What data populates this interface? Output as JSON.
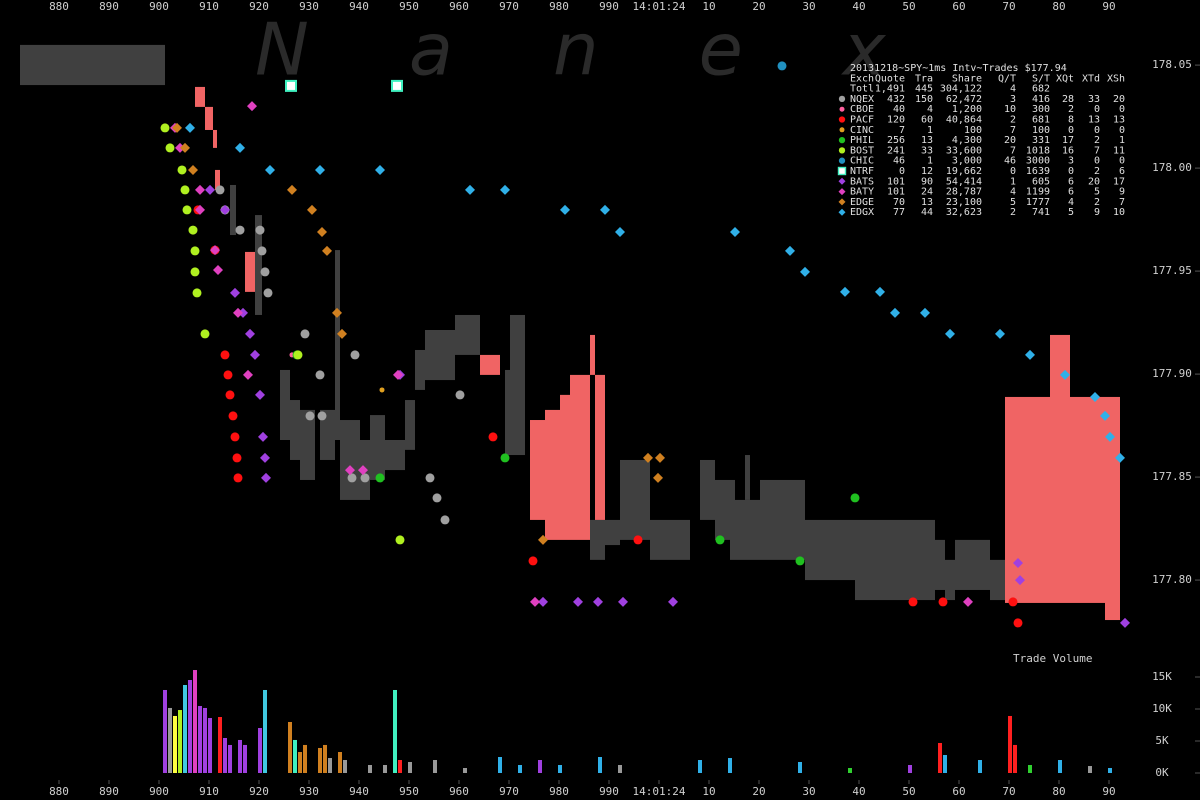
{
  "watermark": "Nanex",
  "chart_data": [
    {
      "type": "scatter",
      "title": "20131218~SPY~1ms Intv~Trades $177.94",
      "xlim": [
        868.2,
        1108.2
      ],
      "xticks": [
        880,
        890,
        900,
        910,
        920,
        930,
        940,
        950,
        960,
        970,
        980,
        990,
        {
          "value": 1000,
          "label": "14:01:24"
        },
        {
          "value": 1010,
          "label": "10"
        },
        {
          "value": 1020,
          "label": "20"
        },
        {
          "value": 1030,
          "label": "30"
        },
        {
          "value": 1040,
          "label": "40"
        },
        {
          "value": 1050,
          "label": "50"
        },
        {
          "value": 1060,
          "label": "60"
        },
        {
          "value": 1070,
          "label": "70"
        },
        {
          "value": 1080,
          "label": "80"
        },
        {
          "value": 1090,
          "label": "90"
        }
      ],
      "ylim": [
        177.7612,
        178.0816
      ],
      "yticks": [
        {
          "value": 177.8,
          "label": "177.80"
        },
        177.85,
        {
          "value": 177.9,
          "label": "177.90"
        },
        177.95,
        {
          "value": 178.0,
          "label": "178.00"
        },
        178.05
      ],
      "grid": false,
      "legend_columns": [
        "Exch",
        "Quote",
        "Tra",
        "Share",
        "Q/T",
        "S/T",
        "XQt",
        "XTd",
        "XSh"
      ],
      "totals": {
        "label": "Totl",
        "cells": [
          "1,491",
          "445",
          "304,122",
          "4",
          "682"
        ]
      },
      "quote_ranges": {
        "color": "#404040",
        "x0": [
          872.2,
          914.2,
          919.2,
          924.2,
          926.2,
          928.2,
          932.2,
          935.2,
          936.2,
          940.2,
          942.2,
          945.2,
          949.2,
          951.2,
          953.2,
          959.2,
          969.2,
          970.2,
          986.2,
          989.2,
          992.2,
          998.2,
          1008.2,
          1011.2,
          1014.2,
          1017.2,
          1020.2,
          1029.2,
          1039.2,
          1055.2,
          1057.2,
          1059.2,
          1066.2
        ],
        "x1": [
          901.2,
          915.4,
          920.6,
          926.2,
          928.2,
          931.2,
          935.2,
          936.2,
          940.2,
          942.2,
          945.2,
          949.2,
          951.2,
          953.2,
          959.2,
          964.2,
          970.2,
          973.2,
          989.2,
          992.2,
          998.2,
          1006.2,
          1011.2,
          1015.2,
          1020.2,
          1018.2,
          1029.2,
          1039.2,
          1055.2,
          1057.2,
          1059.2,
          1066.2,
          1069.2
        ],
        "low": [
          178.0403,
          177.9675,
          177.9287,
          177.868,
          177.8583,
          177.8486,
          177.8583,
          177.868,
          177.8389,
          177.8389,
          177.8486,
          177.8534,
          177.8632,
          177.8923,
          177.8971,
          177.9093,
          177.8607,
          177.8607,
          177.8098,
          177.817,
          177.8195,
          177.8098,
          177.8292,
          177.8195,
          177.8098,
          177.8389,
          177.8098,
          177.8,
          177.7903,
          177.7952,
          177.7903,
          177.7952,
          177.7903
        ],
        "high": [
          178.0598,
          177.9918,
          177.9772,
          177.902,
          177.8874,
          177.8826,
          177.8826,
          177.9602,
          177.8777,
          177.868,
          177.8801,
          177.868,
          177.8874,
          177.9117,
          177.9214,
          177.9287,
          177.902,
          177.9287,
          177.8292,
          177.8292,
          177.8583,
          177.8292,
          177.8583,
          177.8486,
          177.8389,
          177.8607,
          177.8486,
          177.8292,
          177.8292,
          177.8195,
          177.8098,
          177.8195,
          177.8098
        ]
      },
      "crossed_ranges": {
        "color": "#f06464",
        "x0": [
          907.2,
          909.2,
          910.8,
          911.2,
          917.2,
          964.2,
          974.2,
          977.2,
          980.2,
          982.2,
          986.2,
          987.2,
          1069.2,
          1078.2,
          1082.2,
          1089.2
        ],
        "x1": [
          909.2,
          910.8,
          911.6,
          912.2,
          919.2,
          968.2,
          977.2,
          980.2,
          982.2,
          986.2,
          987.2,
          989.2,
          1078.2,
          1082.2,
          1089.2,
          1092.2
        ],
        "low": [
          178.0297,
          178.0185,
          178.0098,
          177.9894,
          177.9399,
          177.8996,
          177.8292,
          177.8195,
          177.8195,
          177.8195,
          177.8996,
          177.8292,
          177.7889,
          177.7889,
          177.7889,
          177.7806
        ],
        "high": [
          178.0394,
          178.0297,
          178.0185,
          177.9991,
          177.9593,
          177.9093,
          177.8777,
          177.8826,
          177.8899,
          177.8996,
          177.919,
          177.8996,
          177.8889,
          177.919,
          177.8889,
          177.8889
        ]
      },
      "series": [
        {
          "name": "NQEX",
          "color": "#a0a0a0",
          "marker": "circle",
          "stats": [
            "432",
            "150",
            "62,472",
            "3",
            "416",
            "28",
            "33",
            "20"
          ],
          "x": [
            912.2,
            913.2,
            916.2,
            920.6,
            921.2,
            921.8,
            929.2,
            930.2,
            932.6,
            938.6,
            941.2,
            954.2,
            955.6,
            957.2,
            960.2,
            920.2,
            932.2,
            939.2
          ],
          "values": [
            177.9894,
            177.9797,
            177.9699,
            177.9598,
            177.9496,
            177.9394,
            177.9195,
            177.8797,
            177.8797,
            177.8496,
            177.8496,
            177.8496,
            177.8399,
            177.8292,
            177.8899,
            177.9699,
            177.8996,
            177.9093
          ]
        },
        {
          "name": "CBOE",
          "color": "#ff60a0",
          "marker": "dot",
          "stats": [
            "40",
            "4",
            "1,200",
            "10",
            "300",
            "2",
            "0",
            "0"
          ],
          "x": [
            926.6
          ],
          "values": [
            177.9093
          ]
        },
        {
          "name": "PACF",
          "color": "#ff1010",
          "marker": "circle",
          "stats": [
            "120",
            "60",
            "40,864",
            "2",
            "681",
            "8",
            "13",
            "13"
          ],
          "x": [
            913.2,
            913.8,
            914.2,
            914.8,
            915.2,
            915.6,
            915.8,
            966.8,
            974.8,
            995.8,
            1050.8,
            1056.8,
            1070.8,
            1071.8,
            907.8,
            911.2
          ],
          "values": [
            177.9093,
            177.8996,
            177.8899,
            177.8797,
            177.8695,
            177.8593,
            177.8496,
            177.8695,
            177.8093,
            177.8195,
            177.7894,
            177.7894,
            177.7894,
            177.7792,
            177.9797,
            177.9602
          ]
        },
        {
          "name": "CINC",
          "color": "#e0a020",
          "marker": "dot",
          "stats": [
            "7",
            "1",
            "100",
            "7",
            "100",
            "0",
            "0",
            "0"
          ],
          "x": [
            944.6
          ],
          "values": [
            177.8923
          ]
        },
        {
          "name": "PHIL",
          "color": "#20c020",
          "marker": "circle",
          "stats": [
            "256",
            "13",
            "4,300",
            "20",
            "331",
            "17",
            "2",
            "1"
          ],
          "x": [
            927.6,
            944.2,
            1012.2,
            1028.2,
            1039.2,
            969.2
          ],
          "values": [
            177.9093,
            177.8496,
            177.8195,
            177.8093,
            177.8399,
            177.8593
          ]
        },
        {
          "name": "BOST",
          "color": "#b0f020",
          "marker": "circle",
          "stats": [
            "241",
            "33",
            "33,600",
            "7",
            "1018",
            "16",
            "7",
            "11"
          ],
          "x": [
            901.2,
            902.2,
            904.6,
            905.2,
            905.6,
            906.8,
            907.2,
            907.2,
            907.6,
            909.2,
            948.2,
            927.8
          ],
          "values": [
            178.0195,
            178.0098,
            177.9991,
            177.9894,
            177.9797,
            177.9699,
            177.9598,
            177.9496,
            177.9394,
            177.9195,
            177.8195,
            177.9093
          ]
        },
        {
          "name": "CHIC",
          "color": "#2090c0",
          "marker": "circle",
          "stats": [
            "46",
            "1",
            "3,000",
            "46",
            "3000",
            "3",
            "0",
            "0"
          ],
          "x": [
            1024.6
          ],
          "values": [
            178.0496
          ]
        },
        {
          "name": "NTRF",
          "color": "#40f0c0",
          "marker": "square",
          "stats": [
            "0",
            "12",
            "19,662",
            "0",
            "1639",
            "0",
            "2",
            "6"
          ],
          "x": [
            926.4,
            947.6
          ],
          "values": [
            178.0399,
            178.0399
          ]
        },
        {
          "name": "BATS",
          "color": "#a040e0",
          "marker": "diamond",
          "stats": [
            "101",
            "90",
            "54,414",
            "1",
            "605",
            "6",
            "20",
            "17"
          ],
          "x": [
            910.2,
            913.2,
            915.2,
            916.8,
            918.2,
            919.2,
            920.2,
            920.8,
            921.2,
            921.4,
            948.2,
            976.8,
            983.8,
            987.8,
            992.8,
            1002.8,
            1071.8,
            1072.2,
            1093.2
          ],
          "values": [
            177.9894,
            177.9797,
            177.9394,
            177.9297,
            177.9195,
            177.9093,
            177.8899,
            177.8695,
            177.8593,
            177.8496,
            177.8996,
            177.7894,
            177.7894,
            177.7894,
            177.7894,
            177.7894,
            177.8083,
            177.8,
            177.7792
          ]
        },
        {
          "name": "BATY",
          "color": "#e040c0",
          "marker": "diamond",
          "stats": [
            "101",
            "24",
            "28,787",
            "4",
            "1199",
            "6",
            "5",
            "9"
          ],
          "x": [
            918.6,
            903.2,
            904.2,
            908.2,
            908.2,
            911.2,
            911.8,
            915.8,
            917.8,
            938.2,
            940.8,
            947.8,
            975.2,
            1061.8
          ],
          "values": [
            178.0301,
            178.0195,
            178.0098,
            177.9894,
            177.9797,
            177.9602,
            177.9505,
            177.9297,
            177.8996,
            177.8534,
            177.8534,
            177.8996,
            177.7894,
            177.7894
          ]
        },
        {
          "name": "EDGE",
          "color": "#d08020",
          "marker": "diamond",
          "stats": [
            "70",
            "13",
            "23,100",
            "5",
            "1777",
            "4",
            "2",
            "7"
          ],
          "x": [
            903.6,
            905.2,
            906.8,
            926.6,
            930.6,
            932.6,
            933.6,
            935.6,
            936.6,
            976.8,
            997.8,
            1000.2,
            999.8
          ],
          "values": [
            178.0195,
            178.0098,
            177.9991,
            177.9894,
            177.9797,
            177.969,
            177.9598,
            177.9297,
            177.9195,
            177.8195,
            177.8593,
            177.8593,
            177.8496
          ]
        },
        {
          "name": "EDGX",
          "color": "#30b0e8",
          "marker": "diamond",
          "stats": [
            "77",
            "44",
            "32,623",
            "2",
            "741",
            "5",
            "9",
            "10"
          ],
          "x": [
            906.2,
            916.2,
            922.2,
            932.2,
            944.2,
            962.2,
            969.2,
            981.2,
            989.2,
            992.2,
            1015.2,
            1026.2,
            1029.2,
            1037.2,
            1044.2,
            1047.2,
            1053.2,
            1058.2,
            1068.2,
            1074.2,
            1081.2,
            1087.2,
            1089.2,
            1090.2,
            1092.2
          ],
          "values": [
            178.0195,
            178.0098,
            177.9991,
            177.9991,
            177.9991,
            177.9894,
            177.9894,
            177.9797,
            177.9797,
            177.969,
            177.969,
            177.9598,
            177.9496,
            177.9399,
            177.9399,
            177.9297,
            177.9297,
            177.9195,
            177.9195,
            177.9093,
            177.8996,
            177.8889,
            177.8797,
            177.8695,
            177.8593
          ]
        }
      ]
    },
    {
      "type": "bar",
      "title": "Trade Volume",
      "ylim": [
        0,
        16875
      ],
      "yticks": [
        {
          "value": 0,
          "label": "0K"
        },
        {
          "value": 5000,
          "label": "5K"
        },
        {
          "value": 10000,
          "label": "10K"
        },
        {
          "value": 15000,
          "label": "15K"
        }
      ],
      "x": [
        901.2,
        902.2,
        903.2,
        904.2,
        905.2,
        906.2,
        907.2,
        908.2,
        909.2,
        910.2,
        912.2,
        913.2,
        914.2,
        916.2,
        917.2,
        920.2,
        921.2,
        926.2,
        927.2,
        928.2,
        929.2,
        932.2,
        933.2,
        934.2,
        936.2,
        937.2,
        942.2,
        945.2,
        947.2,
        948.2,
        950.2,
        955.2,
        961.2,
        968.2,
        972.2,
        976.2,
        980.2,
        988.2,
        992.2,
        1008.2,
        1014.2,
        1028.2,
        1038.2,
        1050.2,
        1056.2,
        1057.2,
        1064.2,
        1070.2,
        1071.2,
        1074.2,
        1080.2,
        1086.2,
        1090.2
      ],
      "values": [
        12970,
        10160,
        8910,
        9840,
        13750,
        14530,
        16090,
        10470,
        10160,
        8590,
        8750,
        5470,
        4380,
        5160,
        4380,
        7030,
        12970,
        7970,
        5160,
        3280,
        4380,
        3910,
        4380,
        2340,
        3280,
        2030,
        1250,
        1250,
        12970,
        2030,
        1720,
        2030,
        780,
        2500,
        1250,
        2030,
        1250,
        2500,
        1250,
        2030,
        2340,
        1720,
        780,
        1250,
        4690,
        2810,
        2030,
        8910,
        4380,
        1250,
        2030,
        1090,
        780
      ],
      "colors": [
        "#a040e0",
        "#999999",
        "#ffff40",
        "#b0f020",
        "#40c8e0",
        "#a040e0",
        "#e040c0",
        "#a040e0",
        "#a040e0",
        "#a040e0",
        "#ff2020",
        "#a040e0",
        "#a040e0",
        "#a040e0",
        "#a040e0",
        "#a040e0",
        "#40c8e0",
        "#d08020",
        "#40f0c0",
        "#d08020",
        "#d08020",
        "#d08020",
        "#d08020",
        "#999999",
        "#d08020",
        "#999999",
        "#999999",
        "#999999",
        "#40f0c0",
        "#ff2020",
        "#999999",
        "#999999",
        "#999999",
        "#30b0e8",
        "#30b0e8",
        "#a040e0",
        "#30b0e8",
        "#30b0e8",
        "#999999",
        "#30b0e8",
        "#30b0e8",
        "#30b0e8",
        "#30d030",
        "#a040e0",
        "#ff2020",
        "#30b0e8",
        "#30b0e8",
        "#ff2020",
        "#ff2020",
        "#30d030",
        "#30b0e8",
        "#999999",
        "#30b0e8"
      ]
    }
  ]
}
